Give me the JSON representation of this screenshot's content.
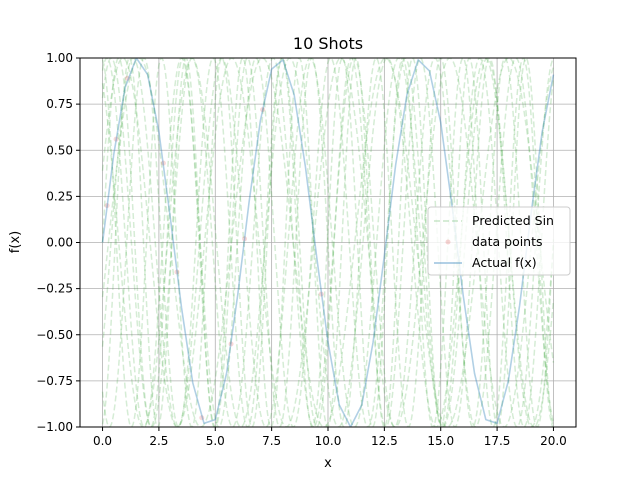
{
  "chart_data": {
    "type": "line",
    "title": "10 Shots",
    "xlabel": "x",
    "ylabel": "f(x)",
    "xlim": [
      -1.0,
      21.0
    ],
    "ylim": [
      -1.0,
      1.0
    ],
    "xticks": [
      0.0,
      2.5,
      5.0,
      7.5,
      10.0,
      12.5,
      15.0,
      17.5,
      20.0
    ],
    "xtick_labels": [
      "0.0",
      "2.5",
      "5.0",
      "7.5",
      "10.0",
      "12.5",
      "15.0",
      "17.5",
      "20.0"
    ],
    "yticks": [
      -1.0,
      -0.75,
      -0.5,
      -0.25,
      0.0,
      0.25,
      0.5,
      0.75,
      1.0
    ],
    "ytick_labels": [
      "−1.00",
      "−0.75",
      "−0.50",
      "−0.25",
      "0.00",
      "0.25",
      "0.50",
      "0.75",
      "1.00"
    ],
    "grid": true,
    "legend_position": "center-right",
    "legend": [
      "Predicted Sin",
      "data points",
      "Actual f(x)"
    ],
    "series": [
      {
        "name": "Actual f(x)",
        "style": "solid",
        "color": "#1f77b4",
        "x": [
          0.0,
          0.5,
          1.0,
          1.5,
          2.0,
          2.5,
          3.0,
          3.5,
          4.0,
          4.5,
          5.0,
          5.5,
          6.0,
          6.5,
          7.0,
          7.5,
          8.0,
          8.5,
          9.0,
          9.5,
          10.0,
          10.5,
          11.0,
          11.5,
          12.0,
          12.5,
          13.0,
          13.5,
          14.0,
          14.5,
          15.0,
          15.5,
          16.0,
          16.5,
          17.0,
          17.5,
          18.0,
          18.5,
          19.0,
          19.5,
          20.0
        ],
        "y": [
          0.0,
          0.48,
          0.84,
          1.0,
          0.91,
          0.6,
          0.14,
          -0.35,
          -0.76,
          -0.98,
          -0.96,
          -0.71,
          -0.28,
          0.22,
          0.66,
          0.94,
          0.99,
          0.8,
          0.41,
          -0.08,
          -0.54,
          -0.88,
          -1.0,
          -0.88,
          -0.54,
          -0.07,
          0.42,
          0.8,
          0.99,
          0.93,
          0.65,
          0.2,
          -0.29,
          -0.71,
          -0.96,
          -0.98,
          -0.75,
          -0.34,
          0.15,
          0.6,
          0.91
        ]
      },
      {
        "name": "Predicted Sin",
        "style": "dashed",
        "color": "#2ca02c",
        "curves": [
          {
            "amp": 1.0,
            "freq": 1.3,
            "phase": 0.4
          },
          {
            "amp": 1.0,
            "freq": 1.6,
            "phase": -0.6
          },
          {
            "amp": 1.0,
            "freq": 1.9,
            "phase": 1.2
          },
          {
            "amp": 1.0,
            "freq": 2.2,
            "phase": 0.0
          },
          {
            "amp": 1.0,
            "freq": 1.45,
            "phase": 2.1
          },
          {
            "amp": 1.0,
            "freq": 2.5,
            "phase": -1.4
          },
          {
            "amp": 1.0,
            "freq": 1.75,
            "phase": 0.9
          },
          {
            "amp": 1.0,
            "freq": 2.05,
            "phase": -2.2
          },
          {
            "amp": 1.0,
            "freq": 1.15,
            "phase": -0.3
          },
          {
            "amp": 1.0,
            "freq": 2.35,
            "phase": 1.7
          }
        ]
      },
      {
        "name": "data points",
        "style": "scatter",
        "color": "#d62728",
        "x": [
          0.2,
          0.6,
          1.1,
          2.7,
          3.3,
          4.4,
          5.7,
          6.3,
          7.1,
          9.7
        ],
        "y": [
          0.2,
          0.56,
          0.89,
          0.43,
          -0.16,
          -0.95,
          -0.55,
          0.02,
          0.72,
          -0.28
        ]
      }
    ]
  }
}
